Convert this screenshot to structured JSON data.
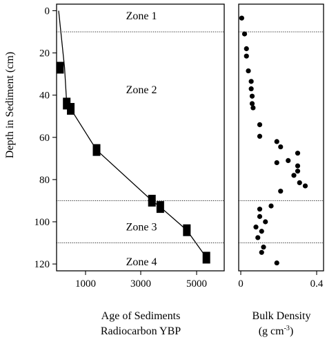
{
  "chart_data": [
    {
      "type": "line",
      "panel": "age",
      "xlabel_line1": "Age of Sediments",
      "xlabel_line2": "Radiocarbon YBP",
      "ylabel": "Depth in Sediment (cm)",
      "ylim": [
        0,
        124
      ],
      "y_inverted": true,
      "yticks": [
        0,
        20,
        40,
        60,
        80,
        100,
        120
      ],
      "xticks": [
        {
          "label": "1000",
          "value": 1000
        },
        {
          "label": "3000",
          "value": 3000
        },
        {
          "label": "5000",
          "value": 5000
        }
      ],
      "xaxis_scale": "piecewise",
      "line": {
        "x": [
          0,
          220,
          300,
          450,
          1400,
          3400,
          3700,
          4650,
          5350
        ],
        "y": [
          0,
          27,
          44,
          46.5,
          66,
          90,
          93,
          104,
          117
        ]
      },
      "markers": {
        "x": [
          50,
          300,
          450,
          1400,
          3400,
          3700,
          4650,
          5350
        ],
        "y": [
          27,
          44,
          46.5,
          66,
          90,
          93,
          104,
          117
        ]
      },
      "zones": [
        {
          "label": "Zone 1",
          "depth": 2.5
        },
        {
          "label": "Zone 2",
          "depth": 37.5
        },
        {
          "label": "Zone 3",
          "depth": 102.5
        },
        {
          "label": "Zone 4",
          "depth": 119
        }
      ],
      "zone_boundaries": [
        10,
        90,
        110
      ]
    },
    {
      "type": "scatter",
      "panel": "density",
      "xlabel_line1": "Bulk Density",
      "xlabel_line2": "(g cm",
      "xlabel_sup": "-3",
      "xlabel_close": ")",
      "xlim": [
        0,
        0.4
      ],
      "xticks": [
        {
          "label": "0",
          "value": 0
        },
        {
          "label": "0.4",
          "value": 0.4
        }
      ],
      "zone_boundaries": [
        10,
        90,
        110
      ],
      "points": [
        {
          "x": 0.005,
          "y": 3.5
        },
        {
          "x": 0.02,
          "y": 11
        },
        {
          "x": 0.03,
          "y": 18
        },
        {
          "x": 0.03,
          "y": 21.5
        },
        {
          "x": 0.04,
          "y": 28.5
        },
        {
          "x": 0.055,
          "y": 33.5
        },
        {
          "x": 0.055,
          "y": 37
        },
        {
          "x": 0.06,
          "y": 40.5
        },
        {
          "x": 0.06,
          "y": 44
        },
        {
          "x": 0.065,
          "y": 46
        },
        {
          "x": 0.1,
          "y": 54
        },
        {
          "x": 0.1,
          "y": 59.5
        },
        {
          "x": 0.19,
          "y": 62
        },
        {
          "x": 0.21,
          "y": 64.5
        },
        {
          "x": 0.3,
          "y": 67.5
        },
        {
          "x": 0.25,
          "y": 71
        },
        {
          "x": 0.19,
          "y": 72
        },
        {
          "x": 0.3,
          "y": 73.5
        },
        {
          "x": 0.3,
          "y": 76
        },
        {
          "x": 0.28,
          "y": 78
        },
        {
          "x": 0.31,
          "y": 81.5
        },
        {
          "x": 0.34,
          "y": 83
        },
        {
          "x": 0.21,
          "y": 85.5
        },
        {
          "x": 0.16,
          "y": 92.5
        },
        {
          "x": 0.1,
          "y": 94
        },
        {
          "x": 0.1,
          "y": 97.5
        },
        {
          "x": 0.13,
          "y": 100
        },
        {
          "x": 0.08,
          "y": 102.5
        },
        {
          "x": 0.11,
          "y": 104.5
        },
        {
          "x": 0.09,
          "y": 107.5
        },
        {
          "x": 0.12,
          "y": 112
        },
        {
          "x": 0.11,
          "y": 114.5
        },
        {
          "x": 0.19,
          "y": 119.5
        }
      ]
    }
  ]
}
